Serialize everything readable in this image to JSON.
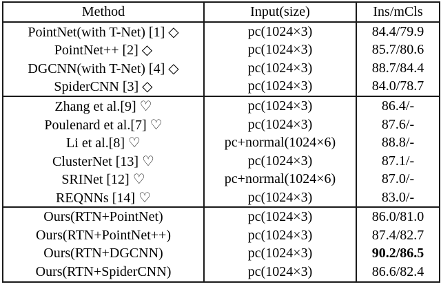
{
  "table": {
    "columns": [
      "Method",
      "Input(size)",
      "Ins/mCls"
    ],
    "sections": [
      {
        "rows": [
          {
            "method": "PointNet(with T-Net) [1] ◇",
            "input": "pc(1024×3)",
            "result": "84.4/79.9",
            "result_bold": false
          },
          {
            "method": "PointNet++ [2] ◇",
            "input": "pc(1024×3)",
            "result": "85.7/80.6",
            "result_bold": false
          },
          {
            "method": "DGCNN(with T-Net) [4] ◇",
            "input": "pc(1024×3)",
            "result": "88.7/84.4",
            "result_bold": false
          },
          {
            "method": "SpiderCNN [3] ◇",
            "input": "pc(1024×3)",
            "result": "84.0/78.7",
            "result_bold": false
          }
        ]
      },
      {
        "rows": [
          {
            "method": "Zhang et al.[9] ♡",
            "input": "pc(1024×3)",
            "result": "86.4/-",
            "result_bold": false
          },
          {
            "method": "Poulenard et al.[7] ♡",
            "input": "pc(1024×3)",
            "result": "87.6/-",
            "result_bold": false
          },
          {
            "method": "Li et al.[8] ♡",
            "input": "pc+normal(1024×6)",
            "result": "88.8/-",
            "result_bold": false
          },
          {
            "method": "ClusterNet [13] ♡",
            "input": "pc(1024×3)",
            "result": "87.1/-",
            "result_bold": false
          },
          {
            "method": "SRINet [12] ♡",
            "input": "pc+normal(1024×6)",
            "result": "87.0/-",
            "result_bold": false
          },
          {
            "method": "REQNNs [14] ♡",
            "input": "pc(1024×3)",
            "result": "83.0/-",
            "result_bold": false
          }
        ]
      },
      {
        "rows": [
          {
            "method": "Ours(RTN+PointNet)",
            "input": "pc(1024×3)",
            "result": "86.0/81.0",
            "result_bold": false
          },
          {
            "method": "Ours(RTN+PointNet++)",
            "input": "pc(1024×3)",
            "result": "87.4/82.7",
            "result_bold": false
          },
          {
            "method": "Ours(RTN+DGCNN)",
            "input": "pc(1024×3)",
            "result": "90.2/86.5",
            "result_bold": true
          },
          {
            "method": "Ours(RTN+SpiderCNN)",
            "input": "pc(1024×3)",
            "result": "86.6/82.4",
            "result_bold": false
          }
        ]
      }
    ]
  }
}
